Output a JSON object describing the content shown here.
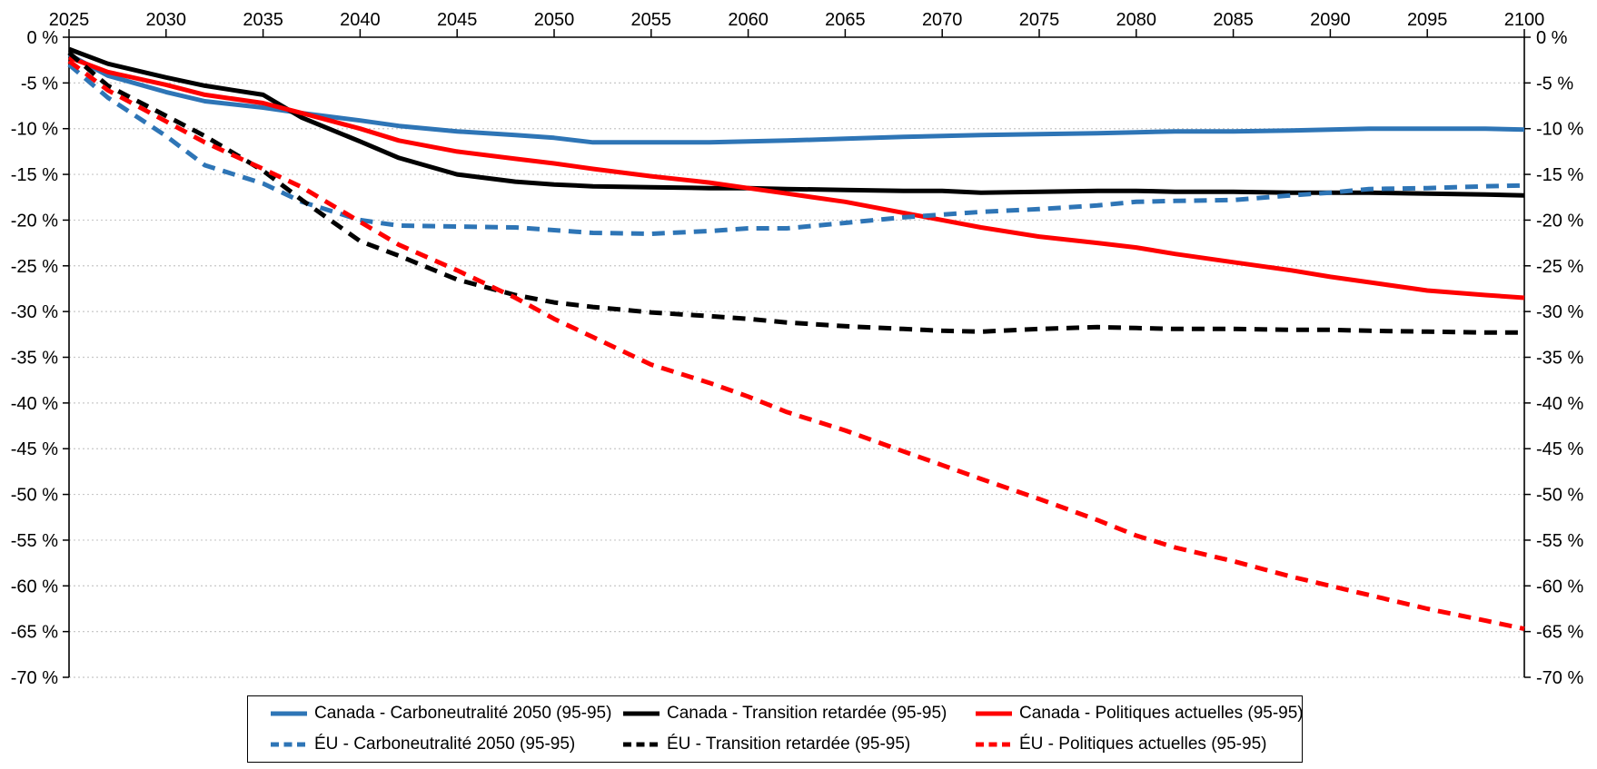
{
  "chart_data": {
    "type": "line",
    "title": "",
    "x_axis": {
      "position": "top",
      "range": [
        2025,
        2100
      ],
      "ticks": [
        "2025",
        "2030",
        "2035",
        "2040",
        "2045",
        "2050",
        "2055",
        "2060",
        "2065",
        "2070",
        "2075",
        "2080",
        "2085",
        "2090",
        "2095",
        "2100"
      ],
      "tick_values": [
        2025,
        2030,
        2035,
        2040,
        2045,
        2050,
        2055,
        2060,
        2065,
        2070,
        2075,
        2080,
        2085,
        2090,
        2095,
        2100
      ]
    },
    "y_axis": {
      "sides": [
        "left",
        "right"
      ],
      "range": [
        -70,
        0
      ],
      "tick_labels": [
        "0 %",
        "-5 %",
        "-10 %",
        "-15 %",
        "-20 %",
        "-25 %",
        "-30 %",
        "-35 %",
        "-40 %",
        "-45 %",
        "-50 %",
        "-55 %",
        "-60 %",
        "-65 %",
        "-70 %"
      ],
      "tick_values": [
        0,
        -5,
        -10,
        -15,
        -20,
        -25,
        -30,
        -35,
        -40,
        -45,
        -50,
        -55,
        -60,
        -65,
        -70
      ]
    },
    "grid": "horizontal-dotted",
    "grid_color": "#c8c8c8",
    "axis_color": "#000000",
    "legend_position": "bottom",
    "x": [
      2025,
      2027,
      2030,
      2032,
      2035,
      2037,
      2040,
      2042,
      2045,
      2048,
      2050,
      2052,
      2055,
      2058,
      2060,
      2062,
      2065,
      2068,
      2070,
      2072,
      2075,
      2078,
      2080,
      2082,
      2085,
      2088,
      2090,
      2092,
      2095,
      2098,
      2100
    ],
    "series": [
      {
        "id": "canada-carboneutralite-2050",
        "name": "Canada - Carboneutralité 2050 (95-95)",
        "color": "#2E75B6",
        "style": "solid",
        "values": [
          -1.9,
          -4.2,
          -6.0,
          -7.0,
          -7.7,
          -8.3,
          -9.1,
          -9.7,
          -10.3,
          -10.7,
          -11.0,
          -11.5,
          -11.5,
          -11.5,
          -11.4,
          -11.3,
          -11.1,
          -10.9,
          -10.8,
          -10.7,
          -10.6,
          -10.5,
          -10.4,
          -10.3,
          -10.3,
          -10.2,
          -10.1,
          -10.0,
          -10.0,
          -10.0,
          -10.1
        ]
      },
      {
        "id": "canada-transition-retardee",
        "name": "Canada - Transition retardée (95-95)",
        "color": "#000000",
        "style": "solid",
        "values": [
          -1.3,
          -2.9,
          -4.4,
          -5.3,
          -6.3,
          -8.8,
          -11.4,
          -13.2,
          -15.0,
          -15.8,
          -16.1,
          -16.3,
          -16.4,
          -16.5,
          -16.5,
          -16.6,
          -16.7,
          -16.8,
          -16.8,
          -17.0,
          -16.9,
          -16.8,
          -16.8,
          -16.9,
          -16.9,
          -17.0,
          -17.0,
          -17.0,
          -17.1,
          -17.2,
          -17.3
        ]
      },
      {
        "id": "canada-politiques-actuelles",
        "name": "Canada - Politiques actuelles (95-95)",
        "color": "#FF0000",
        "style": "solid",
        "values": [
          -2.2,
          -3.8,
          -5.2,
          -6.3,
          -7.2,
          -8.3,
          -10.0,
          -11.3,
          -12.5,
          -13.3,
          -13.8,
          -14.4,
          -15.2,
          -15.9,
          -16.5,
          -17.1,
          -18.0,
          -19.2,
          -20.0,
          -20.8,
          -21.8,
          -22.5,
          -23.0,
          -23.7,
          -24.6,
          -25.5,
          -26.2,
          -26.8,
          -27.7,
          -28.2,
          -28.5
        ]
      },
      {
        "id": "eu-carboneutralite-2050",
        "name": "ÉU - Carboneutralité 2050 (95-95)",
        "color": "#2E75B6",
        "style": "dashed",
        "values": [
          -3.0,
          -6.6,
          -10.8,
          -14.0,
          -16.0,
          -18.0,
          -20.0,
          -20.6,
          -20.7,
          -20.8,
          -21.1,
          -21.4,
          -21.5,
          -21.2,
          -20.9,
          -20.9,
          -20.3,
          -19.7,
          -19.4,
          -19.1,
          -18.8,
          -18.4,
          -18.0,
          -17.9,
          -17.8,
          -17.3,
          -17.0,
          -16.6,
          -16.5,
          -16.3,
          -16.2
        ]
      },
      {
        "id": "eu-transition-retardee",
        "name": "ÉU - Transition retardée (95-95)",
        "color": "#000000",
        "style": "dashed",
        "values": [
          -1.7,
          -5.3,
          -8.6,
          -10.8,
          -14.6,
          -17.8,
          -22.3,
          -23.9,
          -26.5,
          -28.2,
          -29.0,
          -29.5,
          -30.1,
          -30.5,
          -30.8,
          -31.2,
          -31.6,
          -31.9,
          -32.1,
          -32.2,
          -31.9,
          -31.7,
          -31.8,
          -31.9,
          -31.9,
          -32.0,
          -32.0,
          -32.1,
          -32.2,
          -32.3,
          -32.3
        ]
      },
      {
        "id": "eu-politiques-actuelles",
        "name": "ÉU - Politiques actuelles (95-95)",
        "color": "#FF0000",
        "style": "dashed",
        "values": [
          -2.6,
          -5.8,
          -9.2,
          -11.5,
          -14.4,
          -16.4,
          -20.2,
          -22.7,
          -25.5,
          -28.5,
          -30.8,
          -32.8,
          -35.8,
          -37.8,
          -39.3,
          -41.0,
          -43.0,
          -45.3,
          -46.8,
          -48.3,
          -50.5,
          -52.8,
          -54.5,
          -55.8,
          -57.3,
          -59.0,
          -60.0,
          -61.0,
          -62.5,
          -63.8,
          -64.7
        ]
      }
    ]
  }
}
